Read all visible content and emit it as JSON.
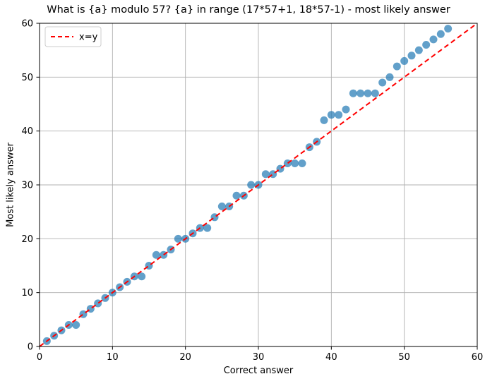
{
  "figure": {
    "kind": "matplotlib-style scatter figure"
  },
  "chart_data": {
    "type": "scatter",
    "title": "What is {a} modulo 57? {a} in range (17*57+1, 18*57-1) - most likely answer",
    "xlabel": "Correct answer",
    "ylabel": "Most likely answer",
    "xlim": [
      0,
      60
    ],
    "ylim": [
      0,
      60
    ],
    "xticks": [
      0,
      10,
      20,
      30,
      40,
      50,
      60
    ],
    "yticks": [
      0,
      10,
      20,
      30,
      40,
      50,
      60
    ],
    "grid": true,
    "grid_color": "#b0b0b0",
    "legend": {
      "position": "upper left",
      "entries": [
        {
          "label": "x=y",
          "line_style": "dashed",
          "color": "#ff0000"
        }
      ]
    },
    "series": [
      {
        "name": "most likely answer",
        "type": "scatter",
        "color": "#1f77b4",
        "opacity": 0.7,
        "marker_radius": 5.5,
        "points": [
          [
            1,
            1
          ],
          [
            2,
            2
          ],
          [
            3,
            3
          ],
          [
            4,
            4
          ],
          [
            5,
            4
          ],
          [
            6,
            6
          ],
          [
            7,
            7
          ],
          [
            8,
            8
          ],
          [
            9,
            9
          ],
          [
            10,
            10
          ],
          [
            11,
            11
          ],
          [
            12,
            12
          ],
          [
            13,
            13
          ],
          [
            14,
            13
          ],
          [
            15,
            15
          ],
          [
            16,
            17
          ],
          [
            17,
            17
          ],
          [
            18,
            18
          ],
          [
            19,
            20
          ],
          [
            20,
            20
          ],
          [
            21,
            21
          ],
          [
            22,
            22
          ],
          [
            23,
            22
          ],
          [
            24,
            24
          ],
          [
            25,
            26
          ],
          [
            26,
            26
          ],
          [
            27,
            28
          ],
          [
            28,
            28
          ],
          [
            29,
            30
          ],
          [
            30,
            30
          ],
          [
            31,
            32
          ],
          [
            32,
            32
          ],
          [
            33,
            33
          ],
          [
            34,
            34
          ],
          [
            35,
            34
          ],
          [
            36,
            34
          ],
          [
            37,
            37
          ],
          [
            38,
            38
          ],
          [
            39,
            42
          ],
          [
            40,
            43
          ],
          [
            41,
            43
          ],
          [
            42,
            44
          ],
          [
            43,
            47
          ],
          [
            44,
            47
          ],
          [
            45,
            47
          ],
          [
            46,
            47
          ],
          [
            47,
            49
          ],
          [
            48,
            50
          ],
          [
            49,
            52
          ],
          [
            50,
            53
          ],
          [
            51,
            54
          ],
          [
            52,
            55
          ],
          [
            53,
            56
          ],
          [
            54,
            57
          ],
          [
            55,
            58
          ],
          [
            56,
            59
          ]
        ]
      },
      {
        "name": "x=y",
        "type": "line",
        "line_style": "dashed",
        "color": "#ff0000",
        "width": 2,
        "points": [
          [
            0,
            0
          ],
          [
            60,
            60
          ]
        ]
      }
    ]
  }
}
